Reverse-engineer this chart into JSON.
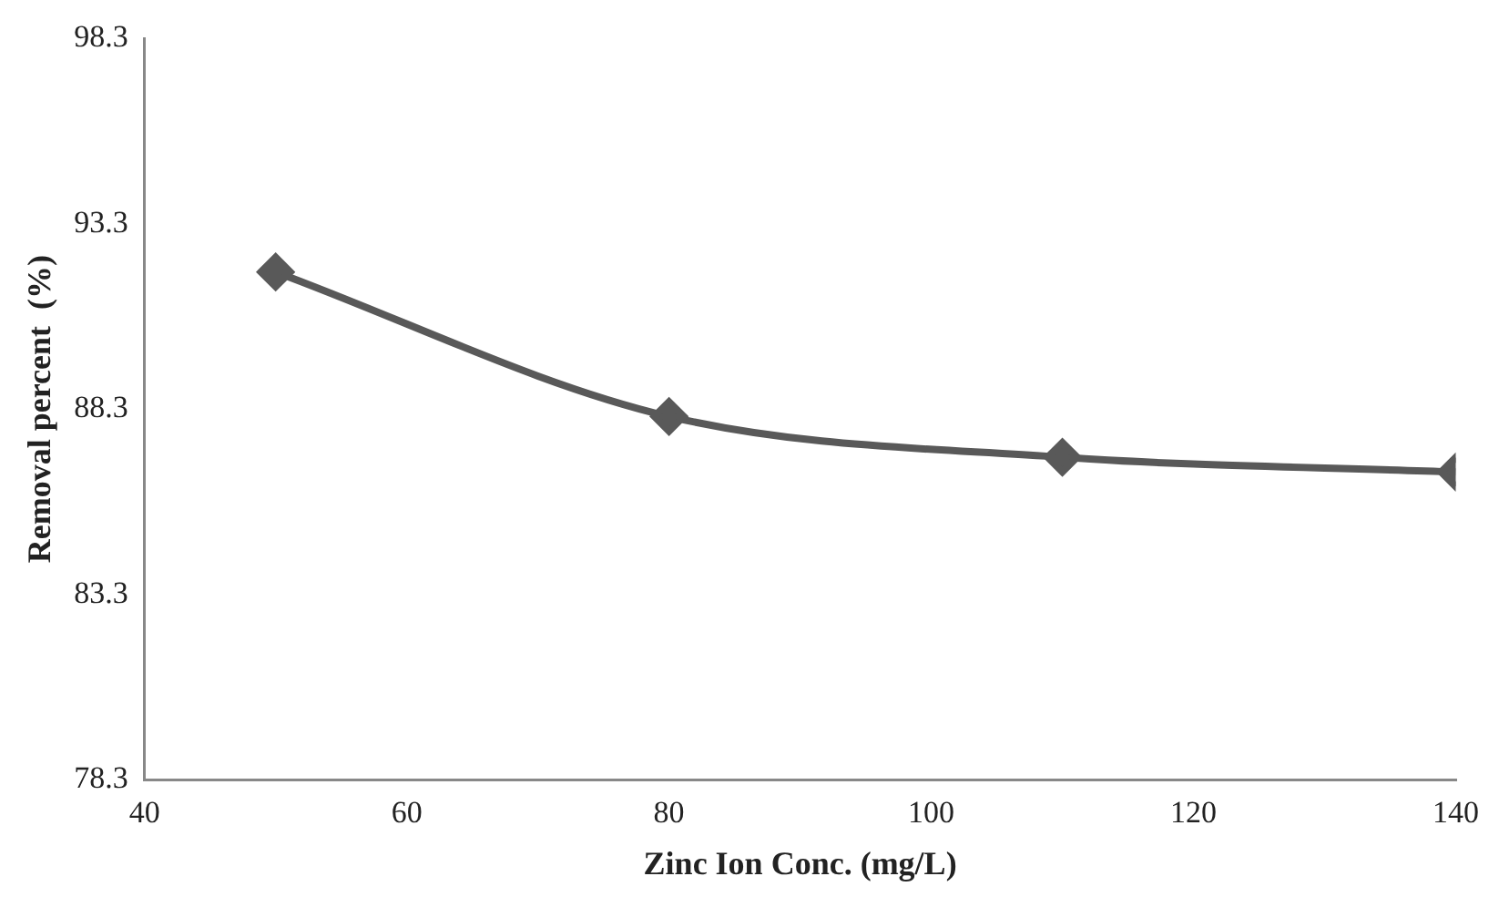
{
  "chart_data": {
    "type": "line",
    "xlabel": "Zinc Ion Conc. (mg/L)",
    "ylabel": "Removal percent  (%)",
    "x": [
      50,
      80,
      110,
      140
    ],
    "series": [
      {
        "color": "#595959",
        "values": [
          92.0,
          88.1,
          87.0,
          86.6
        ]
      }
    ],
    "xlim": [
      40,
      140
    ],
    "xticks": [
      40,
      60,
      80,
      100,
      120,
      140
    ],
    "ylim": [
      78.3,
      98.3
    ],
    "yticks": [
      78.3,
      83.3,
      88.3,
      93.3,
      98.3
    ],
    "grid": false,
    "legend": false,
    "marker": "diamond",
    "line_style": "solid"
  }
}
